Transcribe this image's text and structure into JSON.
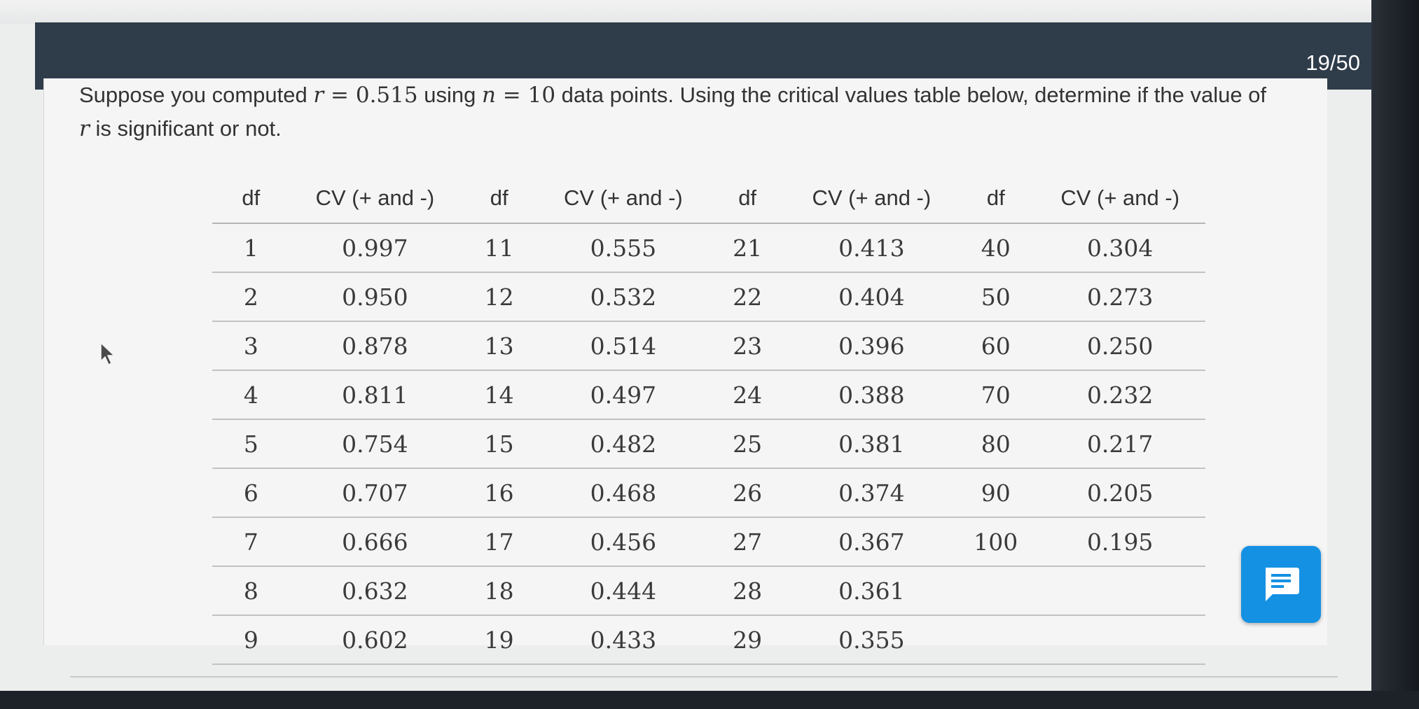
{
  "header": {
    "progress": "19/50"
  },
  "question": {
    "text_1": "Suppose you computed ",
    "r_symbol": "r",
    "r_equals": " = ",
    "r_value": "0.515",
    "text_2": " using ",
    "n_symbol": "n",
    "n_equals": " = ",
    "n_value": "10",
    "text_3": " data points. Using the critical values table below, determine if the value of ",
    "r_symbol_2": "r",
    "text_4": " is significant or not."
  },
  "table": {
    "headers": [
      "df",
      "CV (+ and -)",
      "df",
      "CV (+ and -)",
      "df",
      "CV (+ and -)",
      "df",
      "CV (+ and -)"
    ],
    "rows": [
      [
        "1",
        "0.997",
        "11",
        "0.555",
        "21",
        "0.413",
        "40",
        "0.304"
      ],
      [
        "2",
        "0.950",
        "12",
        "0.532",
        "22",
        "0.404",
        "50",
        "0.273"
      ],
      [
        "3",
        "0.878",
        "13",
        "0.514",
        "23",
        "0.396",
        "60",
        "0.250"
      ],
      [
        "4",
        "0.811",
        "14",
        "0.497",
        "24",
        "0.388",
        "70",
        "0.232"
      ],
      [
        "5",
        "0.754",
        "15",
        "0.482",
        "25",
        "0.381",
        "80",
        "0.217"
      ],
      [
        "6",
        "0.707",
        "16",
        "0.468",
        "26",
        "0.374",
        "90",
        "0.205"
      ],
      [
        "7",
        "0.666",
        "17",
        "0.456",
        "27",
        "0.367",
        "100",
        "0.195"
      ],
      [
        "8",
        "0.632",
        "18",
        "0.444",
        "28",
        "0.361",
        "",
        ""
      ],
      [
        "9",
        "0.602",
        "19",
        "0.433",
        "29",
        "0.355",
        "",
        ""
      ]
    ]
  },
  "icons": {
    "chat": "chat-icon",
    "cursor": "mouse-cursor-icon"
  },
  "colors": {
    "header_bar": "#2f3c4a",
    "chat_button": "#1591e3"
  }
}
